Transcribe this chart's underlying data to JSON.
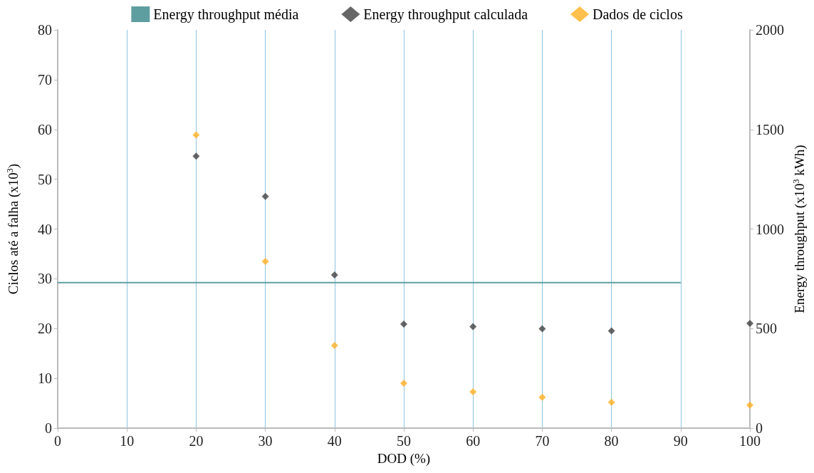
{
  "chart_data": {
    "type": "scatter",
    "xlabel": "DOD (%)",
    "ylabel": "Ciclos até a falha (x10$^{3}$)",
    "y2label": "Energy throughput (x10$^{3}$ kWh)",
    "xlim": [
      0,
      100
    ],
    "xticks": [
      0,
      10,
      20,
      30,
      40,
      50,
      60,
      70,
      80,
      90,
      100
    ],
    "ylim": [
      0,
      80
    ],
    "yticks": [
      0,
      10,
      20,
      30,
      40,
      50,
      60,
      70,
      80
    ],
    "y2lim": [
      0,
      2000
    ],
    "y2ticks": [
      0,
      500,
      1000,
      1500,
      2000
    ],
    "grid": "x",
    "legend": "top",
    "marker": "diamond",
    "series": [
      {
        "name": "Energy throughput média",
        "type": "line",
        "axis": "y2",
        "color": "#5f9ea0",
        "marker": "none",
        "x": [
          0,
          90
        ],
        "values": [
          731,
          731
        ]
      },
      {
        "name": "Energy throughput calculada",
        "axis": "y2",
        "color": "#404040",
        "x": [
          20,
          30,
          40,
          50,
          60,
          70,
          80,
          100
        ],
        "values": [
          1366,
          1164,
          769,
          522,
          510,
          499,
          488,
          526
        ]
      },
      {
        "name": "Dados de ciclos",
        "color": "#ffb020",
        "x": [
          20,
          30,
          40,
          50,
          60,
          70,
          80,
          100
        ],
        "values": [
          58.9,
          33.5,
          16.6,
          9.0,
          7.3,
          6.2,
          5.2,
          4.6
        ]
      }
    ]
  }
}
